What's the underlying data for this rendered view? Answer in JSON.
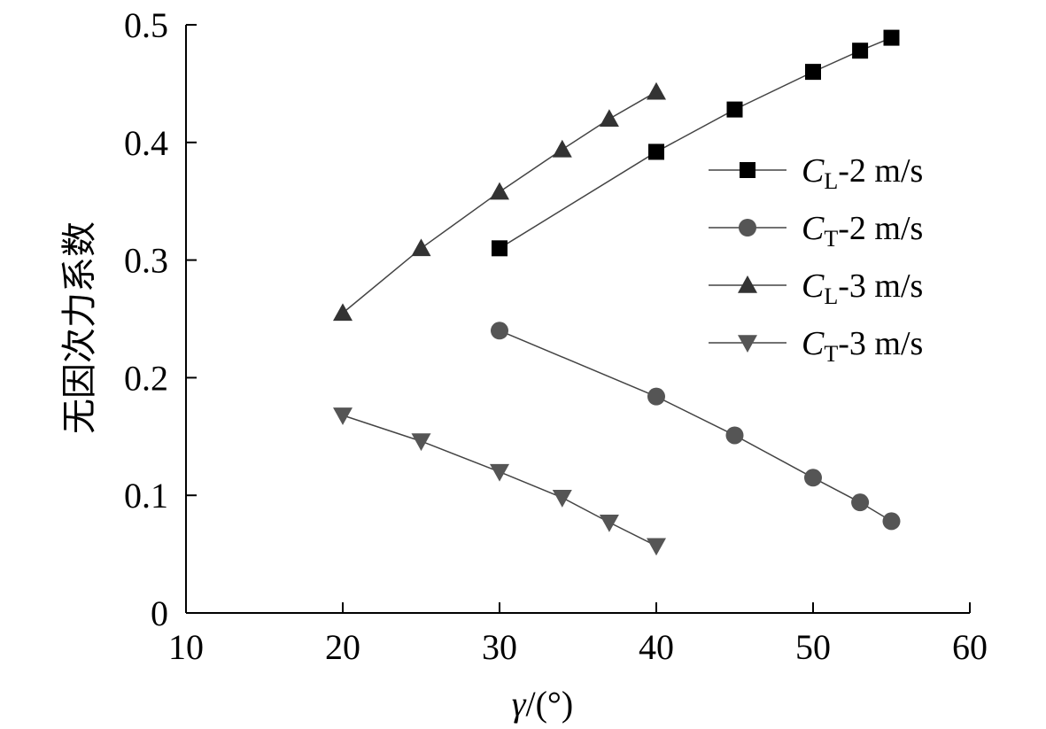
{
  "chart_data": {
    "type": "line",
    "xlabel_symbol": "γ",
    "xlabel_unit": "/(°)",
    "ylabel": "无因次力系数",
    "xlim": [
      10,
      60
    ],
    "ylim": [
      0,
      0.5
    ],
    "x_ticks": [
      "10",
      "20",
      "30",
      "40",
      "50",
      "60"
    ],
    "y_ticks": [
      "0",
      "0.1",
      "0.2",
      "0.3",
      "0.4",
      "0.5"
    ],
    "grid": false,
    "legend_position": "right",
    "series": [
      {
        "name": "CL-2 m/s",
        "legend": {
          "symbol": "C",
          "sub": "L",
          "suffix": "-2 m/s"
        },
        "marker": "square",
        "color": "#000000",
        "x": [
          30,
          40,
          45,
          50,
          53,
          55
        ],
        "y": [
          0.31,
          0.392,
          0.428,
          0.46,
          0.478,
          0.489
        ]
      },
      {
        "name": "CT-2 m/s",
        "legend": {
          "symbol": "C",
          "sub": "T",
          "suffix": "-2 m/s"
        },
        "marker": "circle",
        "color": "#555555",
        "x": [
          30,
          40,
          45,
          50,
          53,
          55
        ],
        "y": [
          0.24,
          0.184,
          0.151,
          0.115,
          0.094,
          0.078
        ]
      },
      {
        "name": "CL-3 m/s",
        "legend": {
          "symbol": "C",
          "sub": "L",
          "suffix": "-3 m/s"
        },
        "marker": "triangle-up",
        "color": "#333333",
        "x": [
          20,
          25,
          30,
          34,
          37,
          40
        ],
        "y": [
          0.255,
          0.31,
          0.358,
          0.394,
          0.42,
          0.443
        ]
      },
      {
        "name": "CT-3 m/s",
        "legend": {
          "symbol": "C",
          "sub": "T",
          "suffix": "-3 m/s"
        },
        "marker": "triangle-down",
        "color": "#555555",
        "x": [
          20,
          25,
          30,
          34,
          37,
          40
        ],
        "y": [
          0.168,
          0.146,
          0.12,
          0.098,
          0.077,
          0.057
        ]
      }
    ]
  }
}
